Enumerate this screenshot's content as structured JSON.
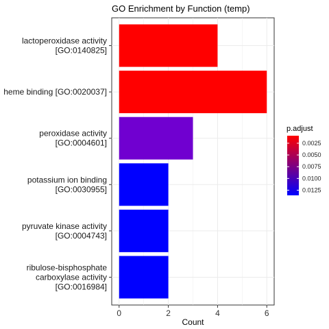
{
  "chart_data": {
    "type": "bar",
    "orientation": "horizontal",
    "title": "GO Enrichment by Function (temp)",
    "xlabel": "Count",
    "ylabel": "",
    "xlim": [
      -0.3,
      6.3
    ],
    "x_ticks": [
      "0",
      "2",
      "4",
      "6"
    ],
    "grid": true,
    "categories": [
      [
        "lactoperoxidase activity",
        "[GO:0140825]"
      ],
      [
        "heme binding [GO:0020037]"
      ],
      [
        "peroxidase activity",
        "[GO:0004601]"
      ],
      [
        "potassium ion binding",
        "[GO:0030955]"
      ],
      [
        "pyruvate kinase activity",
        "[GO:0004743]"
      ],
      [
        "ribulose-bisphosphate",
        "carboxylase activity",
        "[GO:0016984]"
      ]
    ],
    "values": [
      4,
      6,
      3,
      2,
      2,
      2
    ],
    "bar_colors": [
      "#ff0000",
      "#ff0000",
      "#7000d0",
      "#0000ff",
      "#0000ff",
      "#0000ff"
    ],
    "legend": {
      "title": "p.adjust",
      "position": "right",
      "ticks": [
        "0.0025",
        "0.0050",
        "0.0075",
        "0.0100",
        "0.0125"
      ],
      "tick_values": [
        0.0025,
        0.005,
        0.0075,
        0.01,
        0.0125
      ],
      "range": [
        0.0009,
        0.0136
      ],
      "color_low": "#ff0000",
      "color_high": "#0000ff"
    }
  }
}
